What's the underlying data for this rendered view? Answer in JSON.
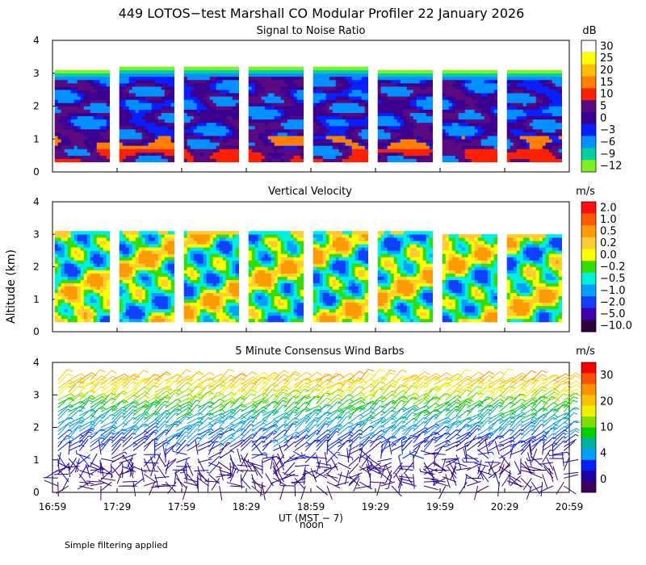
{
  "title": "449 LOTOS−test Marshall CO Modular Profiler 22 January 2026",
  "ylabel": "Altitude (km)",
  "xlabel": "UT  (MST − 7)",
  "noon_label": "noon",
  "footer": "Simple filtering applied",
  "chart_data": [
    {
      "type": "heatmap",
      "title": "Signal to Noise Ratio",
      "ylim": [
        0,
        4
      ],
      "yticks": [
        "0",
        "1",
        "2",
        "3",
        "4"
      ],
      "colorbar_unit": "dB",
      "colorbar_labels": [
        "30",
        "25",
        "20",
        "15",
        "10",
        "5",
        "0",
        "−3",
        "−6",
        "−9",
        "−12"
      ],
      "colorbar_colors": [
        "#ffffff",
        "#ffff00",
        "#ffbf00",
        "#ff8000",
        "#ff2000",
        "#5a0a80",
        "#3c0090",
        "#0820ff",
        "#0090ff",
        "#00d0a0",
        "#80f020"
      ],
      "blocks": [
        {
          "start": "17:00",
          "end": "17:25",
          "top_km": 3.1
        },
        {
          "start": "17:30",
          "end": "17:55",
          "top_km": 3.2
        },
        {
          "start": "18:00",
          "end": "18:25",
          "top_km": 3.2
        },
        {
          "start": "18:30",
          "end": "18:55",
          "top_km": 3.2
        },
        {
          "start": "19:00",
          "end": "19:25",
          "top_km": 3.2
        },
        {
          "start": "19:30",
          "end": "19:55",
          "top_km": 3.1
        },
        {
          "start": "20:00",
          "end": "20:25",
          "top_km": 3.1
        },
        {
          "start": "20:30",
          "end": "20:55",
          "top_km": 3.1
        }
      ]
    },
    {
      "type": "heatmap",
      "title": "Vertical Velocity",
      "ylim": [
        0,
        4
      ],
      "yticks": [
        "0",
        "1",
        "2",
        "3",
        "4"
      ],
      "colorbar_unit": "m/s",
      "colorbar_labels": [
        "2.0",
        "1.0",
        "0.5",
        "0.2",
        "0.0",
        "−0.2",
        "−0.5",
        "−1.0",
        "−2.0",
        "−5.0",
        "−10.0"
      ],
      "colorbar_colors": [
        "#ff1010",
        "#ff5a00",
        "#ff9a00",
        "#ffcc33",
        "#ffff00",
        "#33dd00",
        "#00f0e0",
        "#00a0ff",
        "#1040ff",
        "#4000b0",
        "#300040"
      ],
      "blocks": [
        {
          "start": "17:00",
          "end": "17:25",
          "top_km": 3.1
        },
        {
          "start": "17:30",
          "end": "17:55",
          "top_km": 3.1
        },
        {
          "start": "18:00",
          "end": "18:25",
          "top_km": 3.1
        },
        {
          "start": "18:30",
          "end": "18:55",
          "top_km": 3.1
        },
        {
          "start": "19:00",
          "end": "19:25",
          "top_km": 3.1
        },
        {
          "start": "19:30",
          "end": "19:55",
          "top_km": 3.1
        },
        {
          "start": "20:00",
          "end": "20:25",
          "top_km": 3.0
        },
        {
          "start": "20:30",
          "end": "20:55",
          "top_km": 3.0
        }
      ]
    },
    {
      "type": "scatter",
      "title": "5 Minute Consensus Wind Barbs",
      "ylim": [
        0,
        4
      ],
      "yticks": [
        "0",
        "1",
        "2",
        "3",
        "4"
      ],
      "colorbar_unit": "m/s",
      "colorbar_labels": [
        "30",
        "20",
        "10",
        "4",
        "0"
      ],
      "colorbar_colors": [
        "#ff0000",
        "#ff5000",
        "#ff9000",
        "#ffc000",
        "#f0f000",
        "#80e000",
        "#00d000",
        "#00b0a0",
        "#00a0ff",
        "#0020ff",
        "#2000a0",
        "#400060"
      ],
      "xlim": [
        "16:59",
        "20:59"
      ],
      "xticks": [
        "16:59",
        "17:29",
        "17:59",
        "18:29",
        "18:59",
        "19:29",
        "19:59",
        "20:29",
        "20:59"
      ],
      "speed_profile": [
        {
          "alt_km": 0.5,
          "speed": 2
        },
        {
          "alt_km": 1.0,
          "speed": 3
        },
        {
          "alt_km": 1.5,
          "speed": 6
        },
        {
          "alt_km": 2.0,
          "speed": 10
        },
        {
          "alt_km": 2.5,
          "speed": 14
        },
        {
          "alt_km": 3.0,
          "speed": 20
        },
        {
          "alt_km": 3.5,
          "speed": 24
        }
      ]
    }
  ]
}
